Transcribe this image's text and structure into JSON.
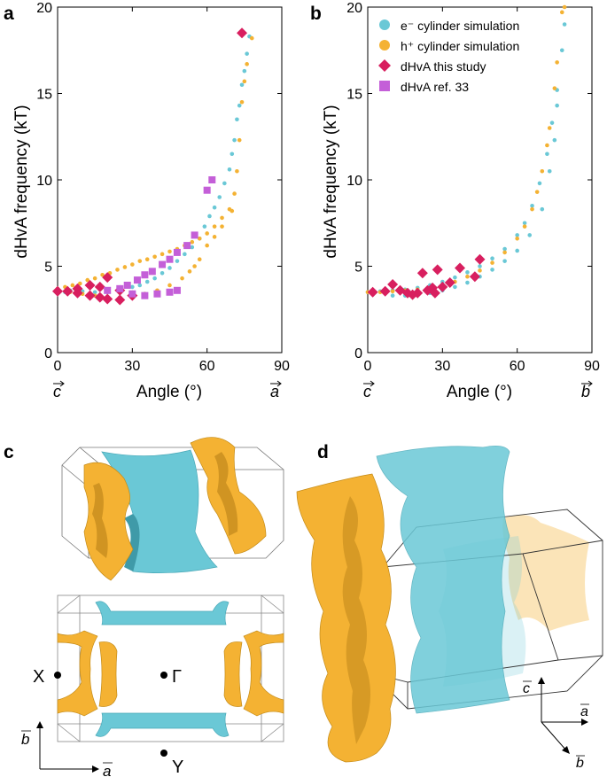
{
  "panels": {
    "a": {
      "letter": "a"
    },
    "b": {
      "letter": "b"
    },
    "c": {
      "letter": "c"
    },
    "d": {
      "letter": "d"
    }
  },
  "legend": [
    {
      "label": "e⁻ cylinder simulation",
      "color": "#6ac8d6",
      "marker": "circle"
    },
    {
      "label": "h⁺ cylinder simulation",
      "color": "#f4b233",
      "marker": "circle"
    },
    {
      "label": "dHvA this study",
      "color": "#d81f5f",
      "marker": "diamond"
    },
    {
      "label": "dHvA ref. 33",
      "color": "#c45fd8",
      "marker": "square"
    }
  ],
  "axis_labels": {
    "a": {
      "x": "Angle (°)",
      "y": "dHvA frequency (kT)",
      "left_vec": "c",
      "right_vec": "a"
    },
    "b": {
      "x": "Angle (°)",
      "y": "dHvA frequency (kT)",
      "left_vec": "c",
      "right_vec": "b"
    }
  },
  "bz_labels": {
    "X": "X",
    "Gamma": "Γ",
    "Y": "Y",
    "b_vec": "b",
    "a_vec": "a"
  },
  "d_axes": {
    "c": "c",
    "a": "a",
    "b": "b"
  },
  "colors": {
    "electron": "#6ac8d6",
    "hole": "#f4b233",
    "dhva": "#d81f5f",
    "ref": "#c45fd8"
  },
  "chart_data": [
    {
      "type": "scatter",
      "panel": "a",
      "xlabel": "Angle (°)",
      "ylabel": "dHvA frequency (kT)",
      "xlim": [
        0,
        90
      ],
      "ylim": [
        0,
        20
      ],
      "xticks": [
        0,
        30,
        60,
        90
      ],
      "yticks": [
        0,
        5,
        10,
        15,
        20
      ],
      "series": [
        {
          "name": "e⁻ cylinder simulation",
          "points": [
            [
              0,
              3.6
            ],
            [
              5,
              3.6
            ],
            [
              10,
              3.55
            ],
            [
              15,
              3.5
            ],
            [
              20,
              3.5
            ],
            [
              25,
              3.6
            ],
            [
              30,
              3.8
            ],
            [
              33,
              3.9
            ],
            [
              36,
              4.1
            ],
            [
              39,
              4.3
            ],
            [
              42,
              4.6
            ],
            [
              45,
              4.9
            ],
            [
              48,
              5.3
            ],
            [
              51,
              5.7
            ],
            [
              54,
              6.1
            ],
            [
              57,
              6.6
            ],
            [
              59,
              7.3
            ],
            [
              61,
              7.9
            ],
            [
              63,
              8.4
            ],
            [
              65,
              9.0
            ],
            [
              67,
              9.8
            ],
            [
              69,
              10.6
            ],
            [
              70,
              11.5
            ],
            [
              71,
              12.3
            ],
            [
              72,
              13.5
            ],
            [
              73,
              14.3
            ],
            [
              74,
              15.5
            ],
            [
              75,
              16.3
            ],
            [
              76,
              17.3
            ],
            [
              77,
              18.3
            ],
            [
              15,
              3.3
            ],
            [
              20,
              3.2
            ],
            [
              25,
              3.2
            ],
            [
              30,
              3.3
            ],
            [
              35,
              3.4
            ],
            [
              40,
              3.4
            ],
            [
              45,
              3.5
            ],
            [
              3,
              3.5
            ],
            [
              8,
              3.5
            ]
          ]
        },
        {
          "name": "h⁺ cylinder simulation",
          "points": [
            [
              0,
              3.7
            ],
            [
              3,
              3.8
            ],
            [
              6,
              3.9
            ],
            [
              9,
              4.0
            ],
            [
              12,
              4.2
            ],
            [
              15,
              4.3
            ],
            [
              18,
              4.5
            ],
            [
              21,
              4.6
            ],
            [
              24,
              4.8
            ],
            [
              27,
              4.95
            ],
            [
              30,
              5.1
            ],
            [
              33,
              5.3
            ],
            [
              36,
              5.4
            ],
            [
              39,
              5.55
            ],
            [
              42,
              5.7
            ],
            [
              45,
              5.85
            ],
            [
              48,
              6.0
            ],
            [
              51,
              6.2
            ],
            [
              54,
              6.4
            ],
            [
              57,
              6.6
            ],
            [
              60,
              6.9
            ],
            [
              63,
              7.3
            ],
            [
              66,
              7.8
            ],
            [
              69,
              8.3
            ],
            [
              71,
              9.2
            ],
            [
              72,
              10.5
            ],
            [
              73,
              12.3
            ],
            [
              74,
              14.5
            ],
            [
              75,
              15.7
            ],
            [
              76,
              16.7
            ],
            [
              78,
              18.2
            ],
            [
              5,
              3.5
            ],
            [
              10,
              3.4
            ],
            [
              15,
              3.3
            ],
            [
              20,
              3.2
            ],
            [
              25,
              3.2
            ],
            [
              30,
              3.3
            ],
            [
              35,
              3.4
            ],
            [
              40,
              3.6
            ],
            [
              45,
              3.9
            ],
            [
              50,
              4.3
            ],
            [
              53,
              4.7
            ],
            [
              55,
              5.0
            ],
            [
              57,
              5.4
            ],
            [
              60,
              6.2
            ],
            [
              63,
              6.7
            ],
            [
              66,
              7.3
            ],
            [
              70,
              8.2
            ]
          ]
        },
        {
          "name": "dHvA this study",
          "points": [
            [
              0,
              3.55
            ],
            [
              4,
              3.55
            ],
            [
              8,
              3.7
            ],
            [
              8,
              3.45
            ],
            [
              13,
              3.9
            ],
            [
              13,
              3.3
            ],
            [
              17,
              3.8
            ],
            [
              17,
              3.2
            ],
            [
              20,
              4.35
            ],
            [
              20,
              3.1
            ],
            [
              25,
              3.6
            ],
            [
              25,
              3.05
            ],
            [
              30,
              3.3
            ],
            [
              74,
              18.5
            ]
          ]
        },
        {
          "name": "dHvA ref. 33",
          "points": [
            [
              20,
              3.6
            ],
            [
              25,
              3.7
            ],
            [
              28,
              3.9
            ],
            [
              32,
              4.2
            ],
            [
              35,
              4.5
            ],
            [
              38,
              4.7
            ],
            [
              42,
              5.1
            ],
            [
              45,
              5.4
            ],
            [
              48,
              5.8
            ],
            [
              52,
              6.2
            ],
            [
              55,
              6.8
            ],
            [
              30,
              3.4
            ],
            [
              35,
              3.3
            ],
            [
              40,
              3.4
            ],
            [
              45,
              3.5
            ],
            [
              48,
              3.6
            ],
            [
              60,
              9.4
            ],
            [
              62,
              10.0
            ]
          ]
        }
      ]
    },
    {
      "type": "scatter",
      "panel": "b",
      "xlabel": "Angle (°)",
      "ylabel": "dHvA frequency (kT)",
      "xlim": [
        0,
        90
      ],
      "ylim": [
        0,
        20
      ],
      "xticks": [
        0,
        30,
        60,
        90
      ],
      "yticks": [
        0,
        5,
        10,
        15,
        20
      ],
      "series": [
        {
          "name": "e⁻ cylinder simulation",
          "points": [
            [
              0,
              3.5
            ],
            [
              5,
              3.55
            ],
            [
              10,
              3.6
            ],
            [
              15,
              3.65
            ],
            [
              20,
              3.75
            ],
            [
              25,
              3.9
            ],
            [
              30,
              4.1
            ],
            [
              35,
              4.35
            ],
            [
              40,
              4.65
            ],
            [
              45,
              5.0
            ],
            [
              50,
              5.45
            ],
            [
              55,
              6.0
            ],
            [
              60,
              6.8
            ],
            [
              63,
              7.5
            ],
            [
              66,
              8.5
            ],
            [
              69,
              9.8
            ],
            [
              72,
              11.5
            ],
            [
              74,
              13.3
            ],
            [
              76,
              15.2
            ],
            [
              78,
              17.5
            ],
            [
              79,
              19.0
            ],
            [
              10,
              3.3
            ],
            [
              15,
              3.3
            ],
            [
              20,
              3.35
            ],
            [
              25,
              3.45
            ],
            [
              30,
              3.6
            ],
            [
              35,
              3.8
            ],
            [
              40,
              4.05
            ],
            [
              45,
              4.4
            ],
            [
              50,
              4.8
            ],
            [
              55,
              5.3
            ],
            [
              60,
              5.9
            ],
            [
              65,
              6.8
            ],
            [
              70,
              8.3
            ],
            [
              73,
              10.5
            ],
            [
              75,
              12.3
            ],
            [
              76,
              14.3
            ]
          ]
        },
        {
          "name": "h⁺ cylinder simulation",
          "points": [
            [
              0,
              3.5
            ],
            [
              5,
              3.5
            ],
            [
              10,
              3.55
            ],
            [
              15,
              3.6
            ],
            [
              20,
              3.65
            ],
            [
              25,
              3.75
            ],
            [
              30,
              3.9
            ],
            [
              35,
              4.1
            ],
            [
              40,
              4.4
            ],
            [
              45,
              4.75
            ],
            [
              50,
              5.2
            ],
            [
              55,
              5.8
            ],
            [
              60,
              6.6
            ],
            [
              63,
              7.3
            ],
            [
              66,
              8.3
            ],
            [
              68,
              9.3
            ],
            [
              70,
              10.5
            ],
            [
              72,
              12.0
            ],
            [
              73,
              13.0
            ],
            [
              75,
              15.3
            ],
            [
              76,
              16.8
            ],
            [
              78,
              19.7
            ],
            [
              79,
              20.0
            ]
          ]
        },
        {
          "name": "dHvA this study",
          "points": [
            [
              2,
              3.5
            ],
            [
              7,
              3.55
            ],
            [
              10,
              3.95
            ],
            [
              13,
              3.6
            ],
            [
              16,
              3.45
            ],
            [
              18,
              3.35
            ],
            [
              20,
              3.45
            ],
            [
              22,
              4.6
            ],
            [
              24,
              3.6
            ],
            [
              26,
              3.75
            ],
            [
              27,
              3.45
            ],
            [
              28,
              4.8
            ],
            [
              30,
              3.8
            ],
            [
              33,
              4.05
            ],
            [
              37,
              4.9
            ],
            [
              43,
              4.4
            ],
            [
              45,
              5.4
            ]
          ]
        }
      ]
    }
  ]
}
